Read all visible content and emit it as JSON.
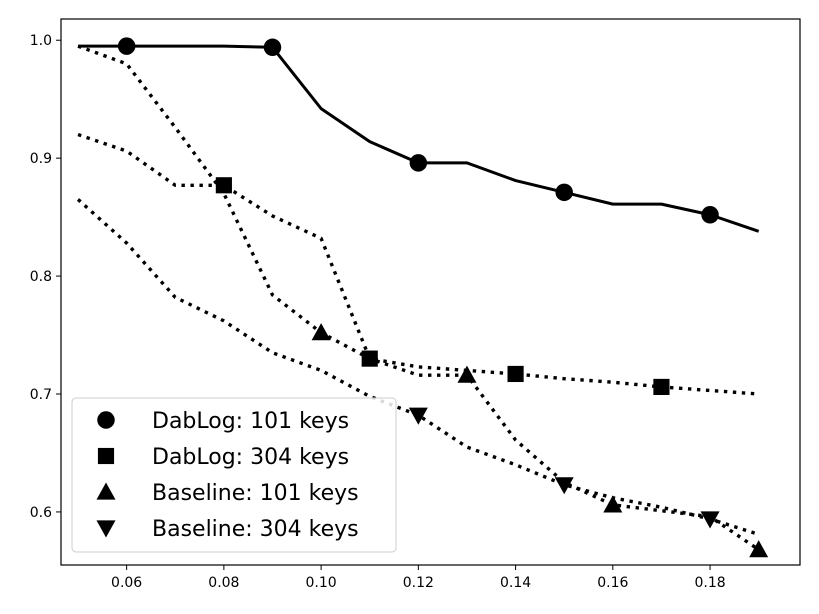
{
  "chart_data": {
    "type": "line",
    "title": "",
    "xlabel": "",
    "ylabel": "",
    "xlim": [
      0.0465,
      0.1985
    ],
    "ylim": [
      0.555,
      1.018
    ],
    "xticks": [
      {
        "value": 0.06,
        "label": "0.06"
      },
      {
        "value": 0.08,
        "label": "0.08"
      },
      {
        "value": 0.1,
        "label": "0.10"
      },
      {
        "value": 0.12,
        "label": "0.12"
      },
      {
        "value": 0.14,
        "label": "0.14"
      },
      {
        "value": 0.16,
        "label": "0.16"
      },
      {
        "value": 0.18,
        "label": "0.18"
      }
    ],
    "yticks": [
      {
        "value": 0.6,
        "label": "0.6"
      },
      {
        "value": 0.7,
        "label": "0.7"
      },
      {
        "value": 0.8,
        "label": "0.8"
      },
      {
        "value": 0.9,
        "label": "0.9"
      },
      {
        "value": 1.0,
        "label": "1.0"
      }
    ],
    "grid": false,
    "legend_position": "lower-left",
    "series": [
      {
        "name": "DabLog: 101 keys",
        "style": "solid",
        "marker": "circle",
        "color": "#000000",
        "x": [
          0.05,
          0.06,
          0.07,
          0.08,
          0.09,
          0.1,
          0.11,
          0.12,
          0.13,
          0.14,
          0.15,
          0.16,
          0.17,
          0.18,
          0.19
        ],
        "y": [
          0.995,
          0.995,
          0.995,
          0.995,
          0.994,
          0.942,
          0.914,
          0.896,
          0.896,
          0.881,
          0.871,
          0.861,
          0.861,
          0.852,
          0.838
        ],
        "marker_x": [
          0.06,
          0.09,
          0.12,
          0.15,
          0.18
        ]
      },
      {
        "name": "DabLog: 304 keys",
        "style": "dotted",
        "marker": "square",
        "color": "#000000",
        "x": [
          0.05,
          0.06,
          0.07,
          0.08,
          0.09,
          0.1,
          0.11,
          0.12,
          0.13,
          0.14,
          0.15,
          0.16,
          0.17,
          0.18,
          0.19
        ],
        "y": [
          0.92,
          0.906,
          0.877,
          0.877,
          0.851,
          0.832,
          0.73,
          0.723,
          0.72,
          0.717,
          0.713,
          0.71,
          0.706,
          0.703,
          0.7
        ],
        "marker_x": [
          0.08,
          0.11,
          0.14,
          0.17
        ]
      },
      {
        "name": "Baseline: 101 keys",
        "style": "dotted",
        "marker": "triangle-up",
        "color": "#000000",
        "x": [
          0.05,
          0.06,
          0.07,
          0.08,
          0.09,
          0.1,
          0.11,
          0.12,
          0.13,
          0.14,
          0.15,
          0.16,
          0.17,
          0.18,
          0.19
        ],
        "y": [
          0.995,
          0.98,
          0.926,
          0.87,
          0.784,
          0.752,
          0.73,
          0.716,
          0.716,
          0.661,
          0.625,
          0.606,
          0.601,
          0.596,
          0.568
        ],
        "marker_x": [
          0.1,
          0.13,
          0.16,
          0.19
        ]
      },
      {
        "name": "Baseline: 304 keys",
        "style": "dotted",
        "marker": "triangle-down",
        "color": "#000000",
        "x": [
          0.05,
          0.06,
          0.07,
          0.08,
          0.09,
          0.1,
          0.11,
          0.12,
          0.13,
          0.14,
          0.15,
          0.16,
          0.17,
          0.18,
          0.19
        ],
        "y": [
          0.865,
          0.828,
          0.782,
          0.762,
          0.735,
          0.72,
          0.698,
          0.682,
          0.655,
          0.64,
          0.623,
          0.612,
          0.604,
          0.594,
          0.581
        ],
        "marker_x": [
          0.12,
          0.15,
          0.18
        ]
      }
    ]
  }
}
